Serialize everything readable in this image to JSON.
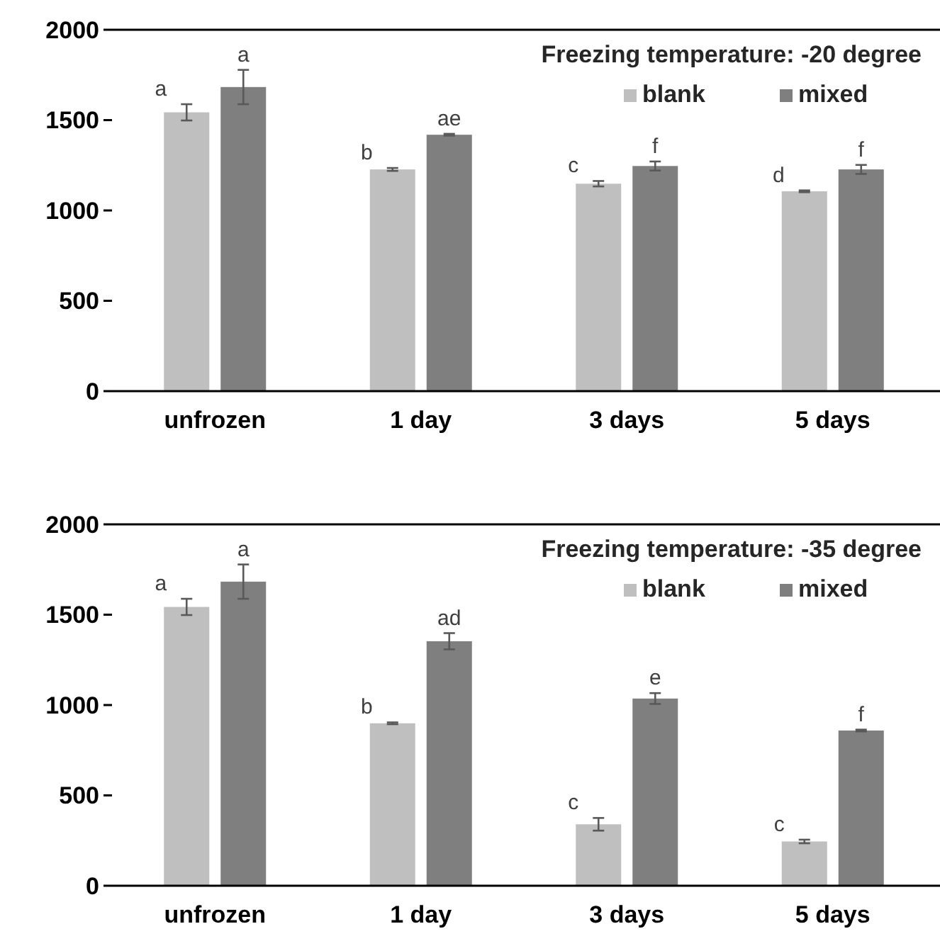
{
  "chart_data": [
    {
      "type": "bar",
      "legend_title": "Freezing temperature: -20 degree",
      "categories": [
        "unfrozen",
        "1 day",
        "3 days",
        "5 days"
      ],
      "ylim": [
        0,
        2000
      ],
      "yticks": [
        0,
        500,
        1000,
        1500,
        2000
      ],
      "grid": false,
      "legend": "top right",
      "series": [
        {
          "name": "blank",
          "color": "#bfbfbf",
          "values": [
            1543,
            1227,
            1148,
            1106
          ],
          "errors": [
            45,
            8,
            15,
            5
          ],
          "value_labels": [
            "a",
            "b",
            "c",
            "d"
          ]
        },
        {
          "name": "mixed",
          "color": "#7f7f7f",
          "values": [
            1683,
            1419,
            1246,
            1227
          ],
          "errors": [
            95,
            5,
            25,
            25
          ],
          "value_labels": [
            "a",
            "ae",
            "f",
            "f"
          ]
        }
      ]
    },
    {
      "type": "bar",
      "legend_title": "Freezing temperature: -35 degree",
      "categories": [
        "unfrozen",
        "1 day",
        "3 days",
        "5 days"
      ],
      "ylim": [
        0,
        2000
      ],
      "yticks": [
        0,
        500,
        1000,
        1500,
        2000
      ],
      "grid": false,
      "legend": "top right",
      "series": [
        {
          "name": "blank",
          "color": "#bfbfbf",
          "values": [
            1543,
            899,
            340,
            245
          ],
          "errors": [
            45,
            5,
            35,
            10
          ],
          "value_labels": [
            "a",
            "b",
            "c",
            "c"
          ]
        },
        {
          "name": "mixed",
          "color": "#7f7f7f",
          "values": [
            1683,
            1353,
            1036,
            859
          ],
          "errors": [
            95,
            45,
            30,
            5
          ],
          "value_labels": [
            "a",
            "ad",
            "e",
            "f"
          ]
        }
      ]
    }
  ]
}
